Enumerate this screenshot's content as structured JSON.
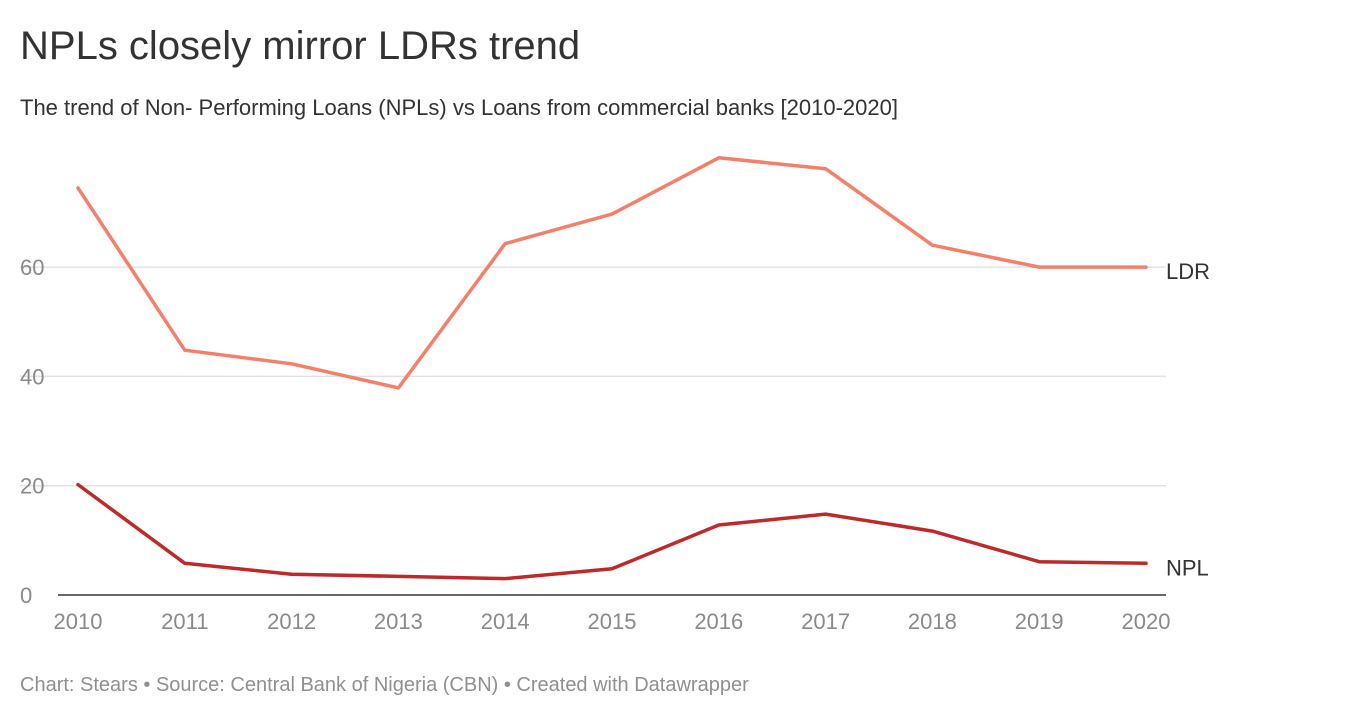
{
  "header": {
    "title": "NPLs closely mirror LDRs trend",
    "subtitle": "The trend of Non- Performing Loans (NPLs) vs Loans from commercial banks [2010-2020]"
  },
  "footer": {
    "credit": "Chart: Stears • Source: Central Bank of Nigeria (CBN) • Created with Datawrapper"
  },
  "chart_data": {
    "type": "line",
    "title": "NPLs closely mirror LDRs trend",
    "subtitle": "The trend of Non- Performing Loans (NPLs) vs Loans from commercial banks [2010-2020]",
    "x": [
      "2010",
      "2011",
      "2012",
      "2013",
      "2014",
      "2015",
      "2016",
      "2017",
      "2018",
      "2019",
      "2020"
    ],
    "yticks": [
      0,
      20,
      40,
      60
    ],
    "ylim": [
      0,
      80
    ],
    "grid": true,
    "series": [
      {
        "name": "LDR",
        "color": "#f47f6a",
        "values": [
          74.5,
          44.8,
          42.3,
          37.9,
          64.3,
          69.7,
          80.0,
          78.0,
          64.0,
          60.0,
          60.0
        ]
      },
      {
        "name": "NPL",
        "color": "#be2a2a",
        "values": [
          20.2,
          5.8,
          3.8,
          3.4,
          3.0,
          4.8,
          12.8,
          14.8,
          11.7,
          6.1,
          5.8
        ]
      }
    ]
  }
}
